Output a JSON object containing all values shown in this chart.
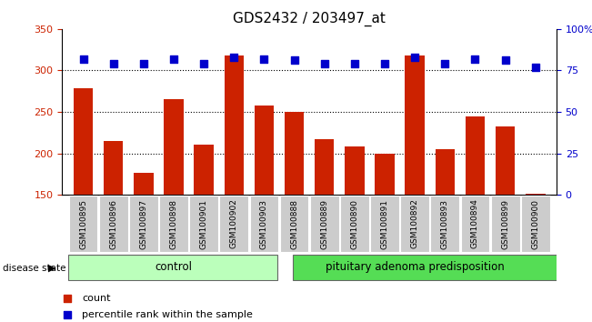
{
  "title": "GDS2432 / 203497_at",
  "samples": [
    "GSM100895",
    "GSM100896",
    "GSM100897",
    "GSM100898",
    "GSM100901",
    "GSM100902",
    "GSM100903",
    "GSM100888",
    "GSM100889",
    "GSM100890",
    "GSM100891",
    "GSM100892",
    "GSM100893",
    "GSM100894",
    "GSM100899",
    "GSM100900"
  ],
  "counts": [
    278,
    215,
    176,
    265,
    210,
    318,
    258,
    250,
    217,
    208,
    200,
    318,
    205,
    244,
    232,
    151
  ],
  "percentiles": [
    82,
    79,
    79,
    82,
    79,
    83,
    82,
    81,
    79,
    79,
    79,
    83,
    79,
    82,
    81,
    77
  ],
  "groups": [
    "control",
    "control",
    "control",
    "control",
    "control",
    "control",
    "control",
    "pituitary adenoma predisposition",
    "pituitary adenoma predisposition",
    "pituitary adenoma predisposition",
    "pituitary adenoma predisposition",
    "pituitary adenoma predisposition",
    "pituitary adenoma predisposition",
    "pituitary adenoma predisposition",
    "pituitary adenoma predisposition",
    "pituitary adenoma predisposition"
  ],
  "bar_color": "#cc2200",
  "dot_color": "#0000cc",
  "ylim_left": [
    150,
    350
  ],
  "ylim_right": [
    0,
    100
  ],
  "yticks_left": [
    150,
    200,
    250,
    300,
    350
  ],
  "yticks_right": [
    0,
    25,
    50,
    75,
    100
  ],
  "ytick_labels_right": [
    "0",
    "25",
    "50",
    "75",
    "100%"
  ],
  "grid_values": [
    200,
    250,
    300
  ],
  "tick_area_color": "#cccccc",
  "control_color": "#bbffbb",
  "disease_color": "#55dd55",
  "disease_label": "disease state",
  "legend_count_label": "count",
  "legend_pct_label": "percentile rank within the sample",
  "n_control": 7,
  "n_disease": 9
}
